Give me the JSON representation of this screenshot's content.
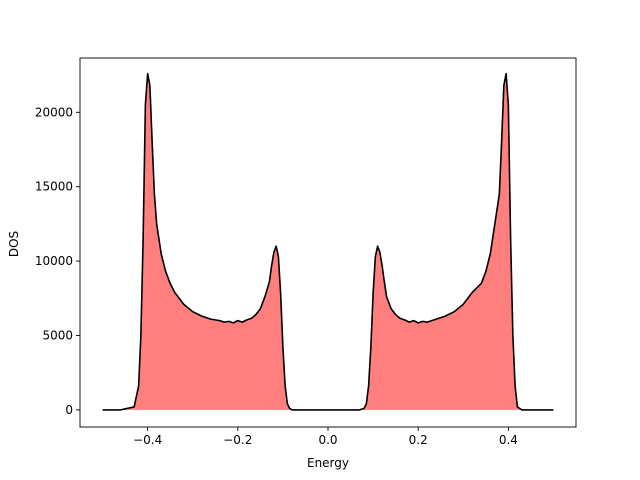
{
  "chart_data": {
    "type": "area",
    "title": "",
    "xlabel": "Energy",
    "ylabel": "DOS",
    "xlim": [
      -0.55,
      0.55
    ],
    "ylim": [
      -1150,
      23650
    ],
    "grid": false,
    "legend": "none",
    "fill_color": "#ff7f7f",
    "line_color": "#000000",
    "x_ticks": [
      -0.4,
      -0.2,
      0.0,
      0.2,
      0.4
    ],
    "x_tick_labels": [
      "−0.4",
      "−0.2",
      "0.0",
      "0.2",
      "0.4"
    ],
    "y_ticks": [
      0,
      5000,
      10000,
      15000,
      20000
    ],
    "y_tick_labels": [
      "0",
      "5000",
      "10000",
      "15000",
      "20000"
    ],
    "series": [
      {
        "x": [
          -0.5,
          -0.46,
          -0.43,
          -0.42,
          -0.415,
          -0.41,
          -0.405,
          -0.4,
          -0.395,
          -0.39,
          -0.385,
          -0.38,
          -0.37,
          -0.36,
          -0.35,
          -0.34,
          -0.32,
          -0.3,
          -0.28,
          -0.26,
          -0.24,
          -0.23,
          -0.22,
          -0.21,
          -0.2,
          -0.19,
          -0.18,
          -0.17,
          -0.16,
          -0.15,
          -0.14,
          -0.13,
          -0.125,
          -0.12,
          -0.115,
          -0.11,
          -0.105,
          -0.1,
          -0.095,
          -0.09,
          -0.085,
          -0.08,
          -0.07,
          -0.06,
          0.0,
          0.06,
          0.07,
          0.08,
          0.085,
          0.09,
          0.095,
          0.1,
          0.105,
          0.11,
          0.115,
          0.12,
          0.125,
          0.13,
          0.14,
          0.15,
          0.16,
          0.17,
          0.18,
          0.19,
          0.2,
          0.21,
          0.22,
          0.23,
          0.24,
          0.26,
          0.28,
          0.3,
          0.32,
          0.34,
          0.35,
          0.36,
          0.37,
          0.38,
          0.385,
          0.39,
          0.395,
          0.4,
          0.405,
          0.41,
          0.415,
          0.42,
          0.43,
          0.46,
          0.5
        ],
        "values": [
          0,
          0,
          200,
          1600,
          5000,
          11500,
          20500,
          22600,
          21800,
          18000,
          14500,
          12500,
          10500,
          9300,
          8500,
          7900,
          7100,
          6600,
          6300,
          6100,
          6000,
          5900,
          5950,
          5850,
          6000,
          5900,
          6050,
          6150,
          6400,
          6800,
          7600,
          8600,
          9700,
          10600,
          11000,
          10300,
          7800,
          4200,
          1600,
          400,
          100,
          0,
          0,
          0,
          0,
          0,
          0,
          100,
          400,
          1600,
          4200,
          7800,
          10300,
          11000,
          10600,
          9700,
          8600,
          7600,
          6800,
          6400,
          6150,
          6050,
          5900,
          6000,
          5850,
          5950,
          5900,
          6000,
          6100,
          6300,
          6600,
          7100,
          7900,
          8500,
          9300,
          10500,
          12500,
          14500,
          18000,
          21800,
          22600,
          20500,
          11500,
          5000,
          1600,
          200,
          0,
          0,
          0
        ]
      }
    ]
  }
}
